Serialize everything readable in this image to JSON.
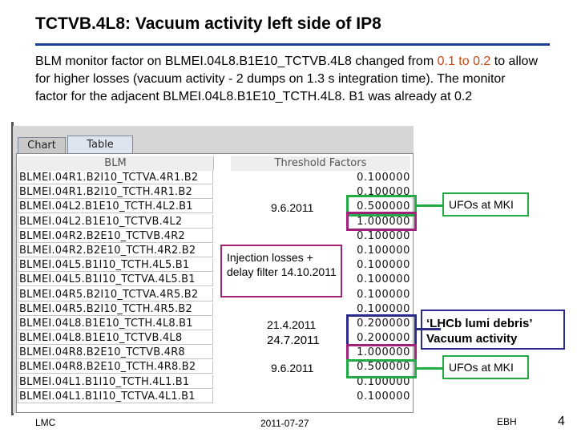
{
  "slide": {
    "title": "TCTVB.4L8: Vacuum activity left side of IP8",
    "intro_1": "BLM monitor factor on BLMEI.04L8.B1E10_TCTVB.4L8 changed from ",
    "intro_from": "0.1 to 0.2",
    "intro_2": " to allow for higher losses (vacuum activity -  2 dumps on 1.3 s integration time). The monitor factor for the adjacent BLMEI.04L8.B1E10_TCTH.4L8. B1 was already at 0.2",
    "accent_color": "#cc4411",
    "rule_color": "#1a3f8f"
  },
  "panel": {
    "tabs": [
      {
        "label": "Chart",
        "active": false
      },
      {
        "label": "Table",
        "active": true
      }
    ],
    "columns": {
      "blm": "BLM",
      "threshold": "Threshold Factors"
    },
    "rows": [
      {
        "blm": "BLMEI.04R1.B2I10_TCTVA.4R1.B2",
        "value": "0.100000"
      },
      {
        "blm": "BLMEI.04R1.B2I10_TCTH.4R1.B2",
        "value": "0.100000"
      },
      {
        "blm": "BLMEI.04L2.B1E10_TCTH.4L2.B1",
        "value": "0.500000"
      },
      {
        "blm": "BLMEI.04L2.B1E10_TCTVB.4L2",
        "value": "1.000000"
      },
      {
        "blm": "BLMEI.04R2.B2E10_TCTVB.4R2",
        "value": "0.100000"
      },
      {
        "blm": "BLMEI.04R2.B2E10_TCTH.4R2.B2",
        "value": "0.100000"
      },
      {
        "blm": "BLMEI.04L5.B1I10_TCTH.4L5.B1",
        "value": "0.100000"
      },
      {
        "blm": "BLMEI.04L5.B1I10_TCTVA.4L5.B1",
        "value": "0.100000"
      },
      {
        "blm": "BLMEI.04R5.B2I10_TCTVA.4R5.B2",
        "value": "0.100000"
      },
      {
        "blm": "BLMEI.04R5.B2I10_TCTH.4R5.B2",
        "value": "0.100000"
      },
      {
        "blm": "BLMEI.04L8.B1E10_TCTH.4L8.B1",
        "value": "0.200000"
      },
      {
        "blm": "BLMEI.04L8.B1E10_TCTVB.4L8",
        "value": "0.200000"
      },
      {
        "blm": "BLMEI.04R8.B2E10_TCTVB.4R8",
        "value": "1.000000"
      },
      {
        "blm": "BLMEI.04R8.B2E10_TCTH.4R8.B2",
        "value": "0.500000"
      },
      {
        "blm": "BLMEI.04L1.B1I10_TCTH.4L1.B1",
        "value": "0.100000"
      },
      {
        "blm": "BLMEI.04L1.B1I10_TCTVA.4L1.B1",
        "value": "0.100000"
      }
    ]
  },
  "annotations": {
    "date_1": "9.6.2011",
    "injection": "Injection losses + delay filter 14.10.2011",
    "date_2a": "21.4.2011",
    "date_2b": "24.7.2011",
    "date_3": "9.6.2011",
    "ufo_1": "UFOs at MKI",
    "lhcb": "‘LHCb lumi debris’ Vacuum activity",
    "ufo_2": "UFOs at MKI",
    "colors": {
      "green": "#22aa44",
      "magenta": "#a0207a",
      "blue": "#2a2a8a"
    }
  },
  "footer": {
    "left": "LMC",
    "date": "2011-07-27",
    "author": "EBH",
    "page": "4"
  }
}
